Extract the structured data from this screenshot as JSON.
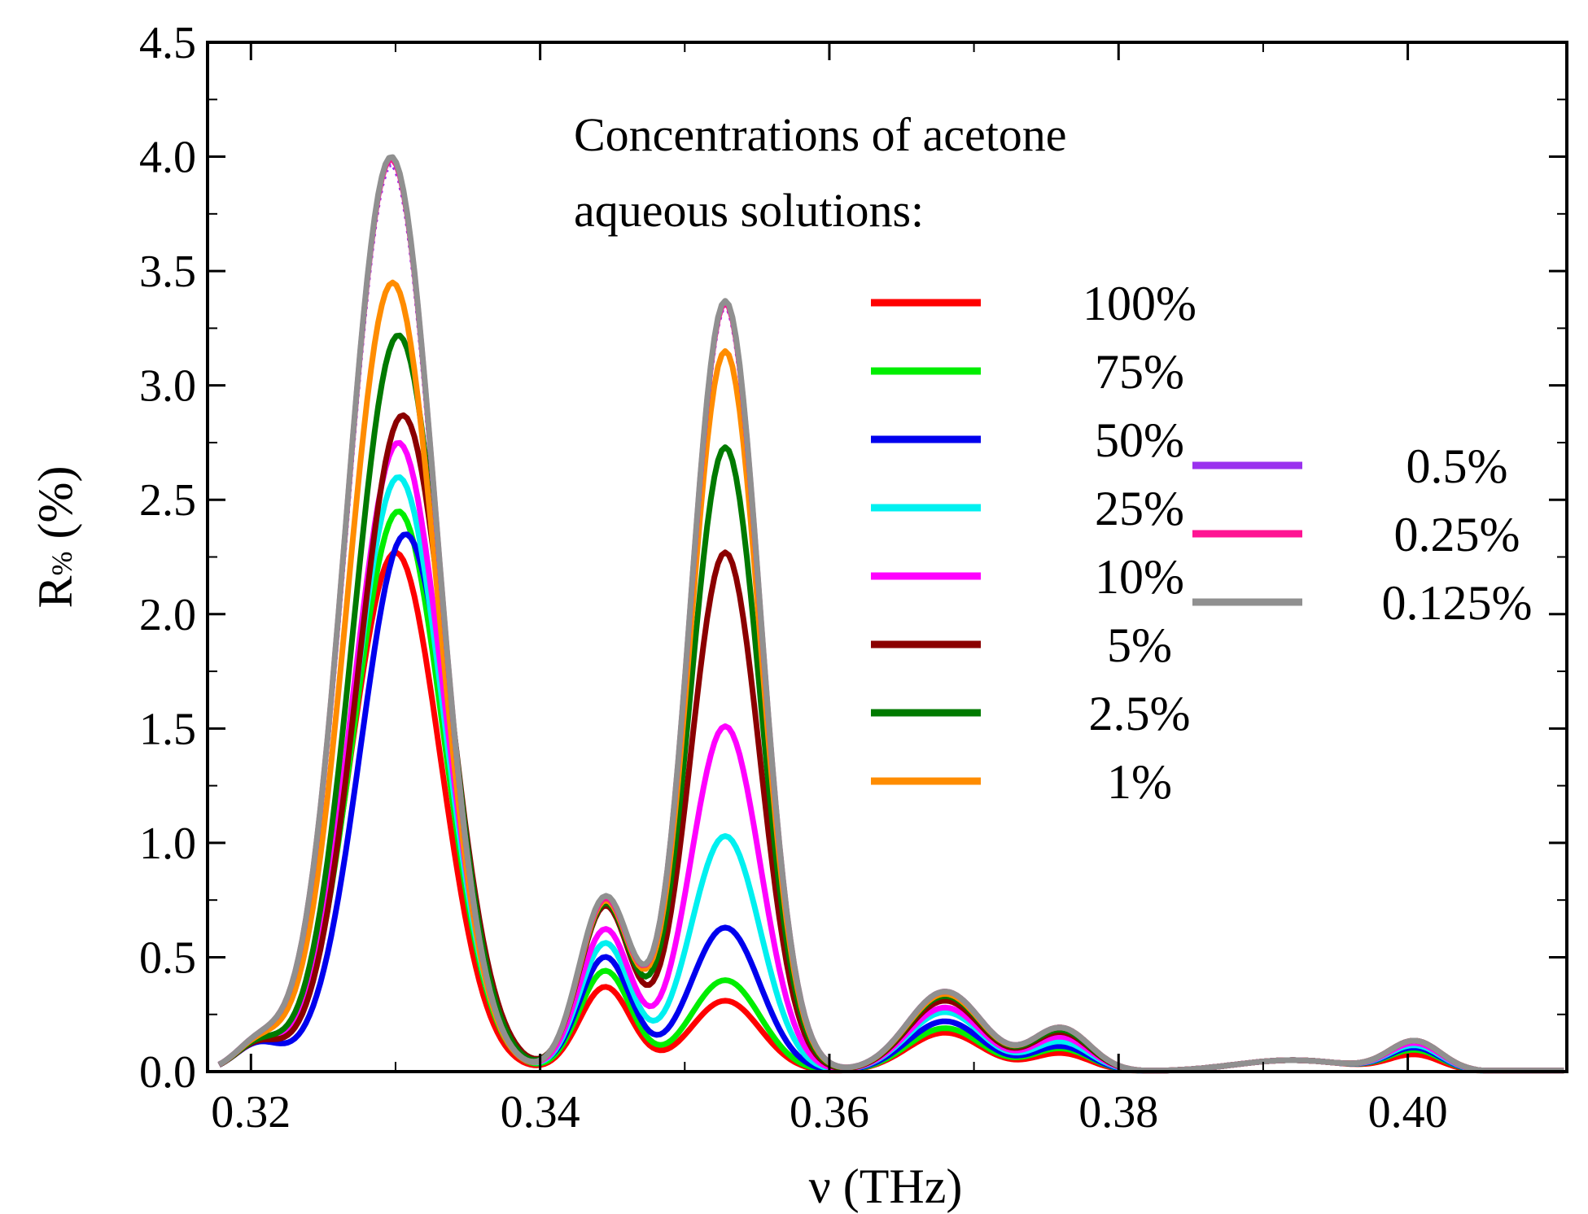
{
  "chart_data": {
    "type": "line",
    "xlabel": "ν (THz)",
    "ylabel_main": "R",
    "ylabel_sub": "%",
    "ylabel_rest": " (%)",
    "xlim": [
      0.317,
      0.411
    ],
    "ylim": [
      0.0,
      4.5
    ],
    "xticks": [
      0.32,
      0.34,
      0.36,
      0.38,
      0.4
    ],
    "xtick_labels": [
      "0.32",
      "0.34",
      "0.36",
      "0.38",
      "0.40"
    ],
    "yticks": [
      0.0,
      0.5,
      1.0,
      1.5,
      2.0,
      2.5,
      3.0,
      3.5,
      4.0,
      4.5
    ],
    "ytick_labels": [
      "0.0",
      "0.5",
      "1.0",
      "1.5",
      "2.0",
      "2.5",
      "3.0",
      "3.5",
      "4.0",
      "4.5"
    ],
    "annotation_lines": [
      "Concentrations of acetone",
      "aqueous solutions:"
    ],
    "legend_placement": "right, two columns",
    "series": [
      {
        "name": "100%",
        "color": "#ff0000",
        "peaks": [
          [
            0.33,
            2.27
          ],
          [
            0.3445,
            0.37
          ],
          [
            0.3528,
            0.31
          ],
          [
            0.368,
            0.17
          ],
          [
            0.376,
            0.08
          ],
          [
            0.4005,
            0.07
          ]
        ]
      },
      {
        "name": "75%",
        "color": "#00ee00",
        "peaks": [
          [
            0.3302,
            2.45
          ],
          [
            0.3445,
            0.44
          ],
          [
            0.3528,
            0.4
          ],
          [
            0.368,
            0.19
          ],
          [
            0.376,
            0.1
          ],
          [
            0.4005,
            0.09
          ]
        ]
      },
      {
        "name": "50%",
        "color": "#0000ee",
        "peaks": [
          [
            0.3307,
            2.35
          ],
          [
            0.3445,
            0.5
          ],
          [
            0.3528,
            0.63
          ],
          [
            0.368,
            0.22
          ],
          [
            0.376,
            0.11
          ],
          [
            0.4005,
            0.1
          ]
        ]
      },
      {
        "name": "25%",
        "color": "#00f0f0",
        "peaks": [
          [
            0.3302,
            2.6
          ],
          [
            0.3445,
            0.56
          ],
          [
            0.3528,
            1.03
          ],
          [
            0.368,
            0.26
          ],
          [
            0.376,
            0.13
          ],
          [
            0.4005,
            0.11
          ]
        ]
      },
      {
        "name": "10%",
        "color": "#ff00ff",
        "peaks": [
          [
            0.3302,
            2.75
          ],
          [
            0.3445,
            0.62
          ],
          [
            0.3528,
            1.51
          ],
          [
            0.368,
            0.28
          ],
          [
            0.376,
            0.15
          ],
          [
            0.4005,
            0.12
          ]
        ]
      },
      {
        "name": "5%",
        "color": "#8b0000",
        "peaks": [
          [
            0.3305,
            2.87
          ],
          [
            0.3445,
            0.72
          ],
          [
            0.3528,
            2.27
          ],
          [
            0.368,
            0.31
          ],
          [
            0.376,
            0.17
          ],
          [
            0.4005,
            0.13
          ]
        ]
      },
      {
        "name": "2.5%",
        "color": "#007a00",
        "peaks": [
          [
            0.3302,
            3.22
          ],
          [
            0.3445,
            0.73
          ],
          [
            0.3528,
            2.73
          ],
          [
            0.368,
            0.33
          ],
          [
            0.376,
            0.18
          ],
          [
            0.4005,
            0.13
          ]
        ]
      },
      {
        "name": "1%",
        "color": "#ff8c00",
        "peaks": [
          [
            0.3298,
            3.45
          ],
          [
            0.3445,
            0.74
          ],
          [
            0.3528,
            3.15
          ],
          [
            0.368,
            0.34
          ],
          [
            0.376,
            0.19
          ],
          [
            0.4005,
            0.13
          ]
        ]
      },
      {
        "name": "0.5%",
        "color": "#9a32ee",
        "peaks": [
          [
            0.3297,
            3.97
          ],
          [
            0.3445,
            0.75
          ],
          [
            0.3528,
            3.35
          ],
          [
            0.368,
            0.35
          ],
          [
            0.376,
            0.19
          ],
          [
            0.4005,
            0.13
          ]
        ]
      },
      {
        "name": "0.25%",
        "color": "#ff1493",
        "peaks": [
          [
            0.3297,
            3.99
          ],
          [
            0.3445,
            0.75
          ],
          [
            0.3528,
            3.36
          ],
          [
            0.368,
            0.35
          ],
          [
            0.376,
            0.19
          ],
          [
            0.4005,
            0.13
          ]
        ]
      },
      {
        "name": "0.125%",
        "color": "#909090",
        "peaks": [
          [
            0.3297,
            4.0
          ],
          [
            0.3445,
            0.76
          ],
          [
            0.3528,
            3.37
          ],
          [
            0.368,
            0.35
          ],
          [
            0.376,
            0.19
          ],
          [
            0.4005,
            0.13
          ]
        ]
      }
    ]
  }
}
